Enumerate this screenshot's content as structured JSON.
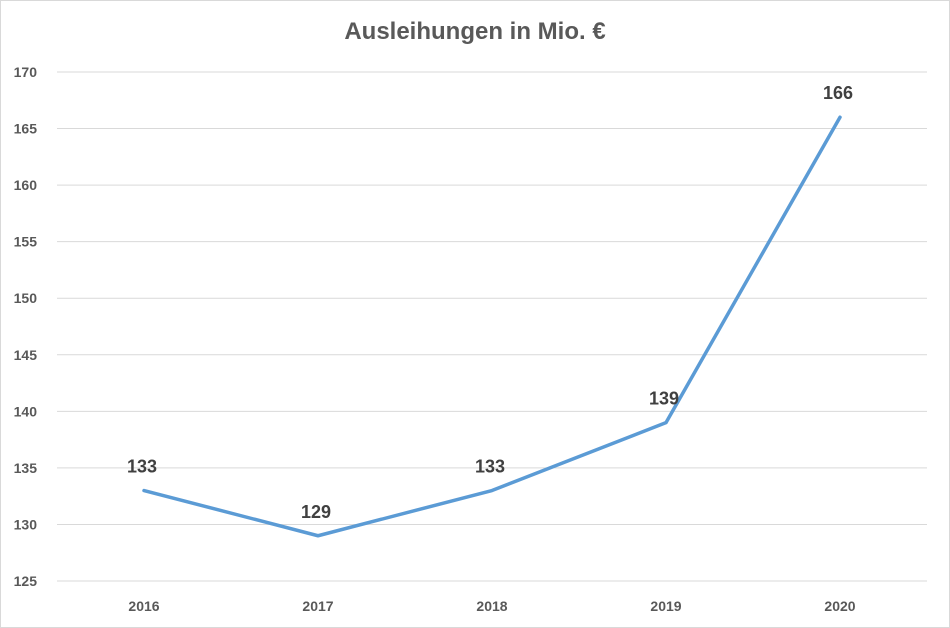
{
  "chart_data": {
    "type": "line",
    "title": "Ausleihungen in Mio. €",
    "xlabel": "",
    "ylabel": "",
    "categories": [
      "2016",
      "2017",
      "2018",
      "2019",
      "2020"
    ],
    "series": [
      {
        "values": [
          133,
          129,
          133,
          139,
          166
        ],
        "color": "#5B9BD5"
      }
    ],
    "ylim": [
      125,
      170
    ],
    "yticks": [
      "125",
      "130",
      "135",
      "140",
      "145",
      "150",
      "155",
      "160",
      "165",
      "170"
    ],
    "data_labels": [
      "133",
      "129",
      "133",
      "139",
      "166"
    ],
    "grid": true,
    "legend": "none"
  }
}
